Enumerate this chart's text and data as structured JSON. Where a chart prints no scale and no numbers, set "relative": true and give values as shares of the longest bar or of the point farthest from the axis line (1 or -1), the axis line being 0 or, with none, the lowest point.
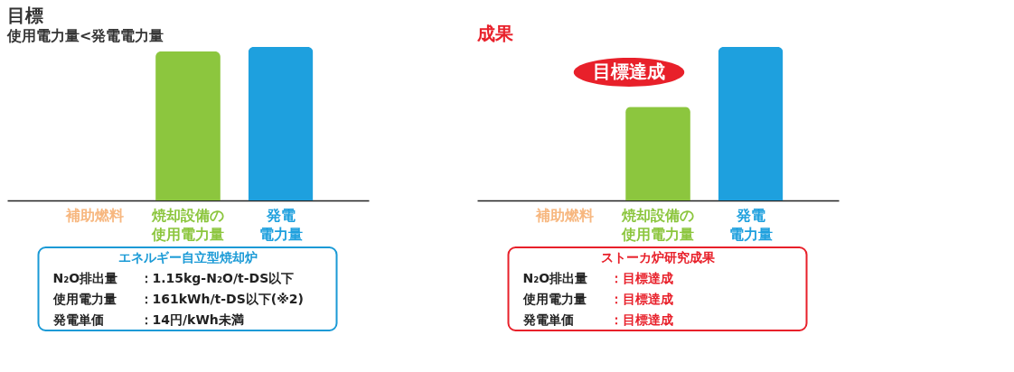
{
  "chart_data": [
    {
      "type": "bar",
      "title": "目標",
      "subtitle": "使用電力量<発電電力量",
      "relative": true,
      "categories": [
        "補助燃料",
        "焼却設備の使用電力量",
        "発電電力量"
      ],
      "values": [
        0,
        0.97,
        1
      ],
      "colors": [
        "#f7b77f",
        "#8cc63e",
        "#1ea0de"
      ]
    },
    {
      "type": "other",
      "annotations": [
        "エネルギー自立型焼却炉",
        "N₂O排出量：1.15kg-N₂O/t-DS以下",
        "使用電力量：161kWh/t-DS以下(※2)",
        "発電単価　：14円/kWh未満"
      ]
    },
    {
      "type": "bar",
      "title": "成果",
      "relative": true,
      "categories": [
        "補助燃料",
        "焼却設備の使用電力量",
        "発電電力量"
      ],
      "values": [
        0,
        0.61,
        1
      ],
      "colors": [
        "#f7b77f",
        "#8cc63e",
        "#1ea0de"
      ],
      "annotations": [
        "目標達成"
      ]
    },
    {
      "type": "other",
      "annotations": [
        "ストーカ炉研究成果",
        "N₂O排出量：目標達成",
        "使用電力量：目標達成",
        "発電単価　：目標達成"
      ]
    }
  ]
}
